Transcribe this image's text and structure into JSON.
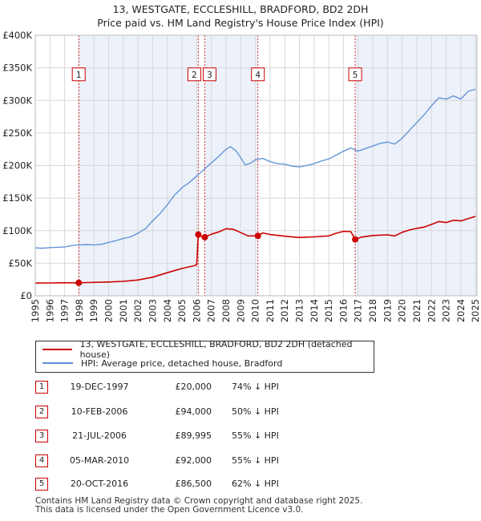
{
  "title_line1": "13, WESTGATE, ECCLESHILL, BRADFORD, BD2 2DH",
  "title_line2": "Price paid vs. HM Land Registry's House Price Index (HPI)",
  "chart_data": {
    "type": "line",
    "x_range": [
      1995,
      2025.1
    ],
    "ylim": [
      0,
      400000
    ],
    "y_ticks": [
      0,
      50000,
      100000,
      150000,
      200000,
      250000,
      300000,
      350000,
      400000
    ],
    "y_tick_labels": [
      "£0",
      "£50K",
      "£100K",
      "£150K",
      "£200K",
      "£250K",
      "£300K",
      "£350K",
      "£400K"
    ],
    "x_ticks": [
      1995,
      1996,
      1997,
      1998,
      1999,
      2000,
      2001,
      2002,
      2003,
      2004,
      2005,
      2006,
      2007,
      2008,
      2009,
      2010,
      2011,
      2012,
      2013,
      2014,
      2015,
      2016,
      2017,
      2018,
      2019,
      2020,
      2021,
      2022,
      2023,
      2024,
      2025
    ],
    "grid": true,
    "series": [
      {
        "name": "13, WESTGATE, ECCLESHILL, BRADFORD, BD2 2DH (detached house)",
        "color": "#cc0000",
        "points": [
          [
            1995.0,
            19500
          ],
          [
            1996.0,
            19700
          ],
          [
            1997.0,
            19900
          ],
          [
            1997.96,
            20000
          ],
          [
            1998.5,
            20300
          ],
          [
            1999.0,
            20600
          ],
          [
            2000.0,
            21200
          ],
          [
            2001.0,
            22200
          ],
          [
            2002.0,
            24200
          ],
          [
            2003.0,
            28500
          ],
          [
            2004.0,
            35500
          ],
          [
            2005.0,
            42000
          ],
          [
            2005.8,
            46000
          ],
          [
            2006.0,
            47500
          ],
          [
            2006.11,
            94000
          ],
          [
            2006.3,
            91500
          ],
          [
            2006.55,
            89995
          ],
          [
            2007.0,
            94500
          ],
          [
            2007.5,
            98000
          ],
          [
            2008.0,
            103000
          ],
          [
            2008.5,
            102000
          ],
          [
            2009.0,
            97000
          ],
          [
            2009.5,
            92000
          ],
          [
            2010.17,
            92000
          ],
          [
            2010.5,
            96500
          ],
          [
            2011.0,
            94000
          ],
          [
            2012.0,
            91500
          ],
          [
            2013.0,
            89500
          ],
          [
            2014.0,
            90500
          ],
          [
            2015.0,
            92000
          ],
          [
            2015.5,
            96000
          ],
          [
            2016.0,
            99000
          ],
          [
            2016.5,
            98500
          ],
          [
            2016.8,
            86500
          ],
          [
            2017.2,
            90000
          ],
          [
            2018.0,
            92500
          ],
          [
            2019.0,
            93500
          ],
          [
            2019.5,
            92000
          ],
          [
            2020.0,
            97500
          ],
          [
            2020.5,
            101000
          ],
          [
            2021.0,
            103500
          ],
          [
            2021.5,
            105500
          ],
          [
            2022.0,
            109500
          ],
          [
            2022.5,
            114000
          ],
          [
            2023.0,
            112500
          ],
          [
            2023.5,
            116000
          ],
          [
            2024.0,
            115000
          ],
          [
            2024.5,
            118500
          ],
          [
            2025.0,
            122000
          ]
        ]
      },
      {
        "name": "HPI: Average price, detached house, Bradford",
        "color": "#5b8fd6",
        "points": [
          [
            1995.0,
            73500
          ],
          [
            1995.5,
            73000
          ],
          [
            1996.0,
            74000
          ],
          [
            1996.5,
            74500
          ],
          [
            1997.0,
            75000
          ],
          [
            1997.5,
            77000
          ],
          [
            1998.0,
            78000
          ],
          [
            1998.5,
            78500
          ],
          [
            1999.0,
            78000
          ],
          [
            1999.5,
            79000
          ],
          [
            2000.0,
            82000
          ],
          [
            2000.5,
            84500
          ],
          [
            2001.0,
            88000
          ],
          [
            2001.5,
            90500
          ],
          [
            2002.0,
            96000
          ],
          [
            2002.5,
            103000
          ],
          [
            2003.0,
            115000
          ],
          [
            2003.5,
            126000
          ],
          [
            2004.0,
            140000
          ],
          [
            2004.5,
            155000
          ],
          [
            2005.0,
            166000
          ],
          [
            2005.5,
            174000
          ],
          [
            2006.0,
            184000
          ],
          [
            2006.5,
            194000
          ],
          [
            2007.0,
            204000
          ],
          [
            2007.5,
            214000
          ],
          [
            2008.0,
            225000
          ],
          [
            2008.3,
            229000
          ],
          [
            2008.7,
            222000
          ],
          [
            2009.0,
            212000
          ],
          [
            2009.3,
            201000
          ],
          [
            2009.7,
            204000
          ],
          [
            2010.0,
            209000
          ],
          [
            2010.5,
            211000
          ],
          [
            2011.0,
            206000
          ],
          [
            2011.5,
            203000
          ],
          [
            2012.0,
            202000
          ],
          [
            2012.5,
            199000
          ],
          [
            2013.0,
            198000
          ],
          [
            2013.5,
            200000
          ],
          [
            2014.0,
            203000
          ],
          [
            2014.5,
            207000
          ],
          [
            2015.0,
            210000
          ],
          [
            2015.5,
            216000
          ],
          [
            2016.0,
            222000
          ],
          [
            2016.5,
            227000
          ],
          [
            2017.0,
            222000
          ],
          [
            2017.5,
            226000
          ],
          [
            2018.0,
            230000
          ],
          [
            2018.5,
            234000
          ],
          [
            2019.0,
            236000
          ],
          [
            2019.5,
            233000
          ],
          [
            2020.0,
            242000
          ],
          [
            2020.5,
            254000
          ],
          [
            2021.0,
            266000
          ],
          [
            2021.5,
            278000
          ],
          [
            2022.0,
            292000
          ],
          [
            2022.5,
            304000
          ],
          [
            2023.0,
            302000
          ],
          [
            2023.5,
            307000
          ],
          [
            2024.0,
            302000
          ],
          [
            2024.5,
            314000
          ],
          [
            2025.0,
            317000
          ]
        ]
      }
    ],
    "markers": [
      {
        "label": "1",
        "x": 1997.96,
        "y": 20000
      },
      {
        "label": "2",
        "x": 2006.11,
        "y": 94000
      },
      {
        "label": "3",
        "x": 2006.55,
        "y": 89995
      },
      {
        "label": "4",
        "x": 2010.17,
        "y": 92000
      },
      {
        "label": "5",
        "x": 2016.8,
        "y": 86500
      }
    ],
    "marker_label_y": 340000
  },
  "legend": {
    "property_label": "13, WESTGATE, ECCLESHILL, BRADFORD, BD2 2DH (detached house)",
    "hpi_label": "HPI: Average price, detached house, Bradford",
    "property_color": "#cc0000",
    "hpi_color": "#5b8fd6"
  },
  "sales": [
    {
      "num": "1",
      "date": "19-DEC-1997",
      "price": "£20,000",
      "hpi": "74% ↓ HPI"
    },
    {
      "num": "2",
      "date": "10-FEB-2006",
      "price": "£94,000",
      "hpi": "50% ↓ HPI"
    },
    {
      "num": "3",
      "date": "21-JUL-2006",
      "price": "£89,995",
      "hpi": "55% ↓ HPI"
    },
    {
      "num": "4",
      "date": "05-MAR-2010",
      "price": "£92,000",
      "hpi": "55% ↓ HPI"
    },
    {
      "num": "5",
      "date": "20-OCT-2016",
      "price": "£86,500",
      "hpi": "62% ↓ HPI"
    }
  ],
  "footer_line1": "Contains HM Land Registry data © Crown copyright and database right 2025.",
  "footer_line2": "This data is licensed under the Open Government Licence v3.0."
}
